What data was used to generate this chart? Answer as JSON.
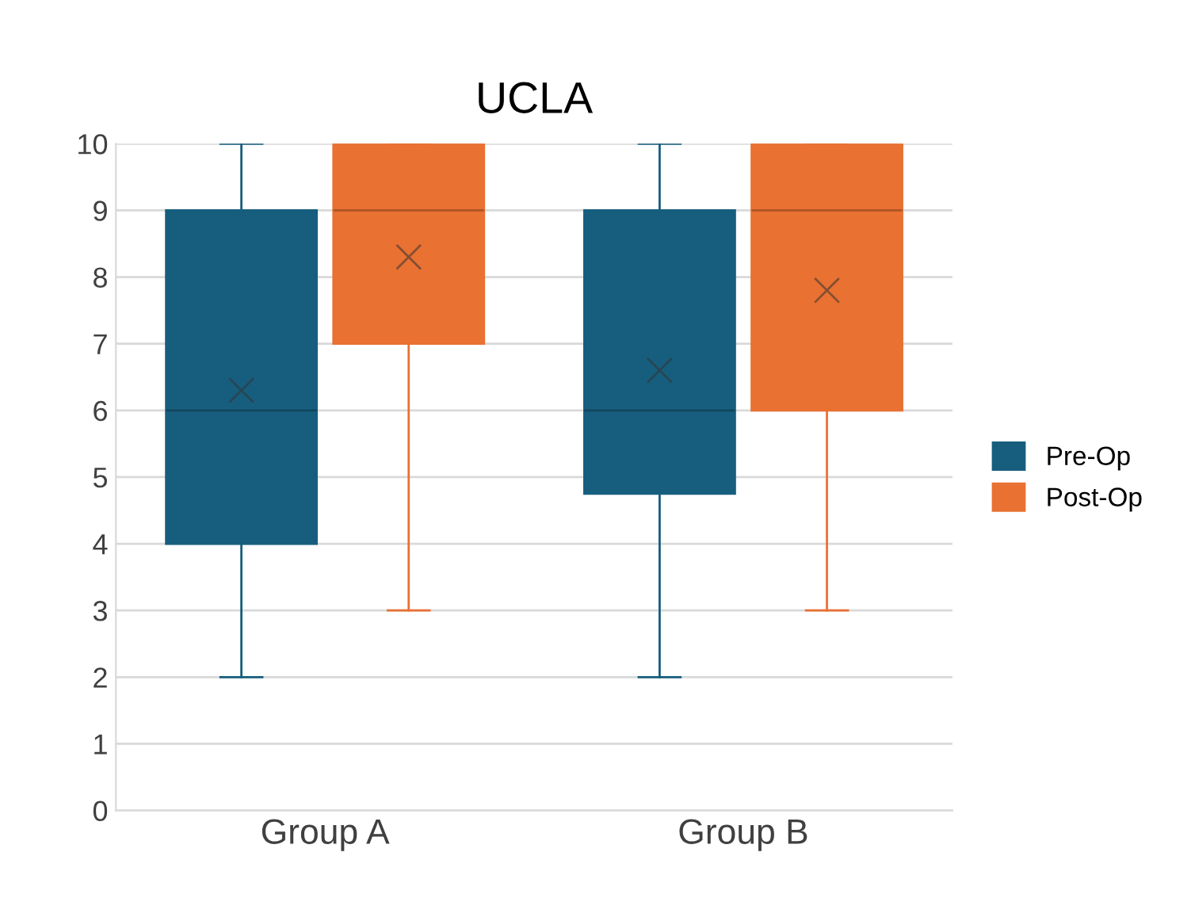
{
  "chart_data": {
    "type": "box",
    "title": "UCLA",
    "categories": [
      "Group A",
      "Group B"
    ],
    "series": [
      {
        "name": "Pre-Op",
        "color": "#175e7e",
        "boxes": [
          {
            "low": 2,
            "q1": 4,
            "median": 6,
            "q3": 9,
            "high": 10,
            "mean": 6.3
          },
          {
            "low": 2,
            "q1": 4.75,
            "median": 6,
            "q3": 9,
            "high": 10,
            "mean": 6.6
          }
        ]
      },
      {
        "name": "Post-Op",
        "color": "#e97132",
        "boxes": [
          {
            "low": 3,
            "q1": 7,
            "median": 9,
            "q3": 10,
            "high": 10,
            "mean": 8.3
          },
          {
            "low": 3,
            "q1": 6,
            "median": 9,
            "q3": 10,
            "high": 10,
            "mean": 7.8
          }
        ]
      }
    ],
    "ylim": [
      0,
      10
    ],
    "yticks": [
      0,
      1,
      2,
      3,
      4,
      5,
      6,
      7,
      8,
      9,
      10
    ],
    "grid": "y",
    "legend": "right",
    "marker": "cross"
  }
}
